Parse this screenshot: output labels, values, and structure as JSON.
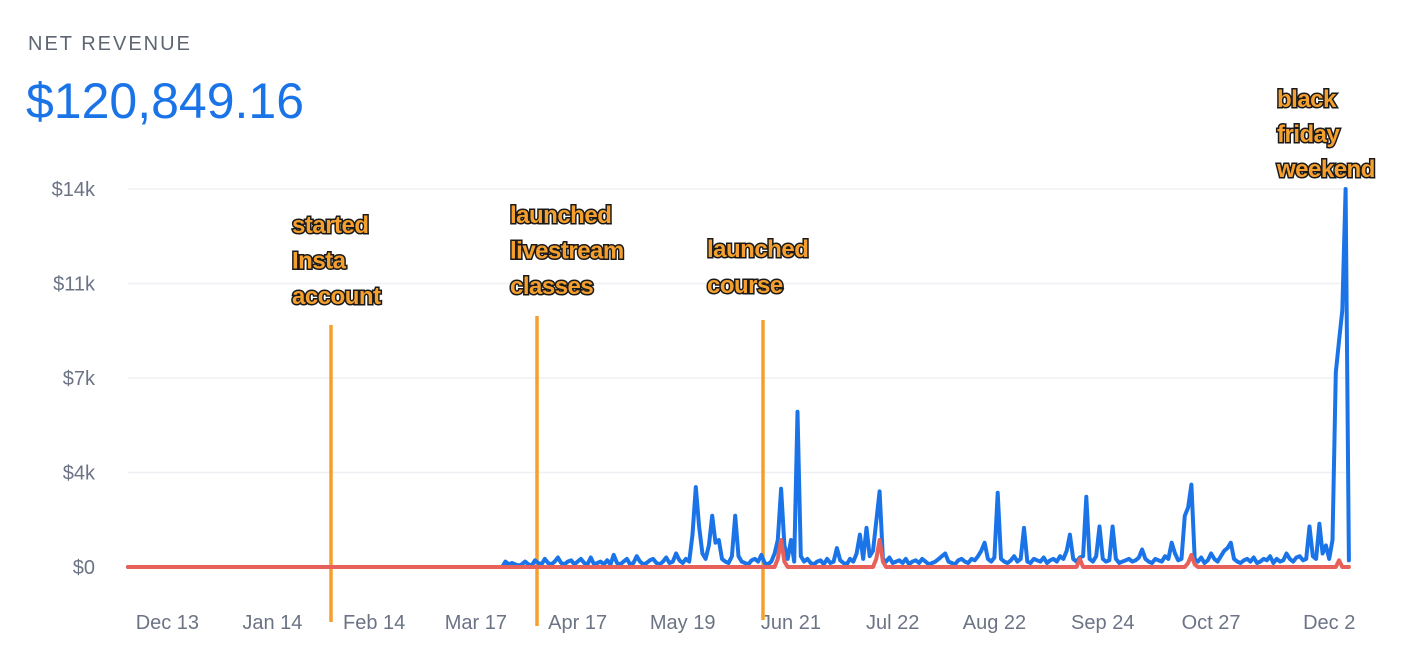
{
  "header": {
    "label": "NET REVENUE",
    "total": "$120,849.16"
  },
  "chart_data": {
    "type": "line",
    "ylim": [
      0,
      14000
    ],
    "yticks": [
      {
        "value": 0,
        "label": "$0"
      },
      {
        "value": 3500,
        "label": "$4k"
      },
      {
        "value": 7000,
        "label": "$7k"
      },
      {
        "value": 10500,
        "label": "$11k"
      },
      {
        "value": 14000,
        "label": "$14k"
      }
    ],
    "grid": true,
    "categories": [
      null,
      null,
      null,
      null,
      null,
      null,
      null,
      null,
      null,
      null,
      null,
      null,
      "Dec 13",
      null,
      null,
      null,
      null,
      null,
      null,
      null,
      null,
      null,
      null,
      null,
      null,
      null,
      null,
      null,
      null,
      null,
      null,
      null,
      null,
      null,
      null,
      null,
      null,
      null,
      null,
      null,
      null,
      null,
      null,
      null,
      "Jan 14",
      null,
      null,
      null,
      null,
      null,
      null,
      null,
      null,
      null,
      null,
      null,
      null,
      null,
      null,
      null,
      null,
      null,
      null,
      null,
      null,
      null,
      null,
      null,
      null,
      null,
      null,
      null,
      null,
      null,
      null,
      "Feb 14",
      null,
      null,
      null,
      null,
      null,
      null,
      null,
      null,
      null,
      null,
      null,
      null,
      null,
      null,
      null,
      null,
      null,
      null,
      null,
      null,
      null,
      null,
      null,
      null,
      null,
      null,
      null,
      null,
      null,
      null,
      "Mar 17",
      null,
      null,
      null,
      null,
      null,
      null,
      null,
      null,
      null,
      null,
      null,
      null,
      null,
      null,
      null,
      null,
      null,
      null,
      null,
      null,
      null,
      null,
      null,
      null,
      null,
      null,
      null,
      null,
      null,
      null,
      "Apr 17",
      null,
      null,
      null,
      null,
      null,
      null,
      null,
      null,
      null,
      null,
      null,
      null,
      null,
      null,
      null,
      null,
      null,
      null,
      null,
      null,
      null,
      null,
      null,
      null,
      null,
      null,
      null,
      null,
      null,
      null,
      null,
      "May 19",
      null,
      null,
      null,
      null,
      null,
      null,
      null,
      null,
      null,
      null,
      null,
      null,
      null,
      null,
      null,
      null,
      null,
      null,
      null,
      null,
      null,
      null,
      null,
      null,
      null,
      null,
      null,
      null,
      null,
      null,
      null,
      null,
      "Jun 21",
      null,
      null,
      null,
      null,
      null,
      null,
      null,
      null,
      null,
      null,
      null,
      null,
      null,
      null,
      null,
      null,
      null,
      null,
      null,
      null,
      null,
      null,
      null,
      null,
      null,
      null,
      null,
      null,
      null,
      null,
      "Jul 22",
      null,
      null,
      null,
      null,
      null,
      null,
      null,
      null,
      null,
      null,
      null,
      null,
      null,
      null,
      null,
      null,
      null,
      null,
      null,
      null,
      null,
      null,
      null,
      null,
      null,
      null,
      null,
      null,
      null,
      null,
      "Aug 22",
      null,
      null,
      null,
      null,
      null,
      null,
      null,
      null,
      null,
      null,
      null,
      null,
      null,
      null,
      null,
      null,
      null,
      null,
      null,
      null,
      null,
      null,
      null,
      null,
      null,
      null,
      null,
      null,
      null,
      null,
      null,
      null,
      "Sep 24",
      null,
      null,
      null,
      null,
      null,
      null,
      null,
      null,
      null,
      null,
      null,
      null,
      null,
      null,
      null,
      null,
      null,
      null,
      null,
      null,
      null,
      null,
      null,
      null,
      null,
      null,
      null,
      null,
      null,
      null,
      null,
      null,
      "Oct 27",
      null,
      null,
      null,
      null,
      null,
      null,
      null,
      null,
      null,
      null,
      null,
      null,
      null,
      null,
      null,
      null,
      null,
      null,
      null,
      null,
      null,
      null,
      null,
      null,
      null,
      null,
      null,
      null,
      null,
      null,
      null,
      null,
      null,
      null,
      null,
      "Dec 2",
      null,
      null,
      null,
      null,
      null,
      null
    ],
    "series": [
      {
        "color": "#1a74e8",
        "values": [
          0,
          0,
          0,
          0,
          0,
          0,
          0,
          0,
          0,
          0,
          0,
          0,
          0,
          0,
          0,
          0,
          0,
          0,
          0,
          0,
          0,
          0,
          0,
          0,
          0,
          0,
          0,
          0,
          0,
          0,
          0,
          0,
          0,
          0,
          0,
          0,
          0,
          0,
          0,
          0,
          0,
          0,
          0,
          0,
          0,
          0,
          0,
          0,
          0,
          0,
          0,
          0,
          0,
          0,
          0,
          0,
          0,
          0,
          0,
          0,
          0,
          0,
          0,
          0,
          0,
          0,
          0,
          0,
          0,
          0,
          0,
          0,
          0,
          0,
          0,
          0,
          0,
          0,
          0,
          0,
          0,
          0,
          0,
          0,
          0,
          0,
          0,
          0,
          0,
          0,
          0,
          0,
          0,
          0,
          0,
          0,
          0,
          0,
          0,
          0,
          0,
          0,
          0,
          0,
          0,
          0,
          0,
          0,
          0,
          0,
          0,
          0,
          0,
          0,
          0,
          200,
          100,
          150,
          100,
          50,
          100,
          200,
          100,
          50,
          250,
          150,
          100,
          300,
          150,
          100,
          200,
          350,
          150,
          100,
          200,
          250,
          100,
          200,
          300,
          150,
          100,
          350,
          100,
          150,
          200,
          100,
          250,
          100,
          450,
          150,
          100,
          200,
          300,
          100,
          150,
          400,
          200,
          100,
          150,
          250,
          300,
          150,
          100,
          200,
          350,
          150,
          200,
          500,
          250,
          150,
          300,
          200,
          1200,
          2960,
          1500,
          500,
          300,
          800,
          1900,
          900,
          1000,
          300,
          200,
          150,
          400,
          1900,
          400,
          200,
          150,
          100,
          250,
          300,
          200,
          450,
          150,
          100,
          200,
          500,
          1000,
          2900,
          800,
          300,
          1000,
          200,
          5750,
          400,
          200,
          300,
          150,
          100,
          200,
          250,
          100,
          300,
          150,
          200,
          700,
          250,
          150,
          100,
          300,
          200,
          500,
          1200,
          300,
          1450,
          400,
          600,
          1700,
          2800,
          300,
          200,
          350,
          150,
          200,
          250,
          150,
          300,
          100,
          200,
          250,
          150,
          300,
          200,
          100,
          150,
          200,
          300,
          400,
          500,
          200,
          150,
          100,
          250,
          300,
          200,
          150,
          300,
          250,
          400,
          600,
          900,
          300,
          200,
          350,
          2750,
          300,
          200,
          150,
          250,
          400,
          200,
          300,
          1450,
          200,
          150,
          300,
          250,
          200,
          350,
          150,
          250,
          300,
          200,
          400,
          300,
          600,
          1200,
          300,
          200,
          350,
          400,
          2600,
          300,
          200,
          400,
          1500,
          300,
          200,
          250,
          1500,
          300,
          150,
          200,
          250,
          300,
          200,
          250,
          350,
          650,
          300,
          200,
          150,
          300,
          250,
          200,
          400,
          300,
          900,
          500,
          250,
          300,
          1900,
          2200,
          3050,
          300,
          200,
          350,
          150,
          250,
          500,
          300,
          200,
          400,
          600,
          700,
          900,
          300,
          200,
          150,
          250,
          300,
          200,
          350,
          150,
          200,
          300,
          250,
          400,
          150,
          300,
          200,
          250,
          500,
          300,
          200,
          350,
          400,
          250,
          300,
          1500,
          400,
          300,
          1600,
          500,
          800,
          300,
          1000,
          7200,
          8400,
          9500,
          14000,
          250
        ]
      },
      {
        "color": "#e8605a",
        "values": [
          0,
          0,
          0,
          0,
          0,
          0,
          0,
          0,
          0,
          0,
          0,
          0,
          0,
          0,
          0,
          0,
          0,
          0,
          0,
          0,
          0,
          0,
          0,
          0,
          0,
          0,
          0,
          0,
          0,
          0,
          0,
          0,
          0,
          0,
          0,
          0,
          0,
          0,
          0,
          0,
          0,
          0,
          0,
          0,
          0,
          0,
          0,
          0,
          0,
          0,
          0,
          0,
          0,
          0,
          0,
          0,
          0,
          0,
          0,
          0,
          0,
          0,
          0,
          0,
          0,
          0,
          0,
          0,
          0,
          0,
          0,
          0,
          0,
          0,
          0,
          0,
          0,
          0,
          0,
          0,
          0,
          0,
          0,
          0,
          0,
          0,
          0,
          0,
          0,
          0,
          0,
          0,
          0,
          0,
          0,
          0,
          0,
          0,
          0,
          0,
          0,
          0,
          0,
          0,
          0,
          0,
          0,
          0,
          0,
          0,
          0,
          0,
          0,
          0,
          0,
          0,
          0,
          0,
          0,
          0,
          0,
          0,
          0,
          0,
          0,
          0,
          0,
          0,
          0,
          0,
          0,
          0,
          0,
          0,
          0,
          0,
          0,
          0,
          0,
          0,
          0,
          0,
          0,
          0,
          0,
          0,
          0,
          0,
          0,
          0,
          0,
          0,
          0,
          0,
          0,
          0,
          0,
          0,
          0,
          0,
          0,
          0,
          0,
          0,
          0,
          0,
          0,
          0,
          0,
          0,
          0,
          0,
          0,
          0,
          0,
          0,
          0,
          0,
          0,
          0,
          0,
          0,
          0,
          0,
          0,
          0,
          0,
          0,
          0,
          0,
          0,
          0,
          0,
          0,
          0,
          0,
          0,
          0,
          300,
          1000,
          200,
          0,
          0,
          0,
          0,
          0,
          0,
          0,
          0,
          0,
          0,
          0,
          0,
          0,
          0,
          0,
          0,
          0,
          0,
          0,
          0,
          0,
          0,
          0,
          0,
          0,
          0,
          0,
          300,
          1000,
          200,
          0,
          0,
          0,
          0,
          0,
          0,
          0,
          0,
          0,
          0,
          0,
          0,
          0,
          0,
          0,
          0,
          0,
          0,
          0,
          0,
          0,
          0,
          0,
          0,
          0,
          0,
          0,
          0,
          0,
          0,
          0,
          0,
          0,
          0,
          0,
          0,
          0,
          0,
          0,
          0,
          0,
          0,
          0,
          0,
          0,
          0,
          0,
          0,
          0,
          0,
          0,
          0,
          0,
          0,
          0,
          0,
          0,
          0,
          0,
          300,
          0,
          0,
          0,
          0,
          0,
          0,
          0,
          0,
          0,
          0,
          0,
          0,
          0,
          0,
          0,
          0,
          0,
          0,
          0,
          0,
          0,
          0,
          0,
          0,
          0,
          0,
          0,
          0,
          0,
          0,
          0,
          0,
          150,
          450,
          100,
          0,
          0,
          0,
          0,
          0,
          0,
          0,
          0,
          0,
          0,
          0,
          0,
          0,
          0,
          0,
          0,
          0,
          0,
          0,
          0,
          0,
          0,
          0,
          0,
          0,
          0,
          0,
          0,
          0,
          0,
          0,
          0,
          0,
          0,
          0,
          0,
          0,
          0,
          0,
          0,
          0,
          0,
          0,
          250,
          0,
          0,
          0
        ]
      }
    ],
    "annotations": [
      {
        "lines": [
          "started",
          "Insta",
          "account"
        ]
      },
      {
        "lines": [
          "launched",
          "livestream",
          "classes"
        ]
      },
      {
        "lines": [
          "launched",
          "course"
        ]
      },
      {
        "lines": [
          "black",
          "friday",
          "weekend"
        ]
      }
    ]
  }
}
